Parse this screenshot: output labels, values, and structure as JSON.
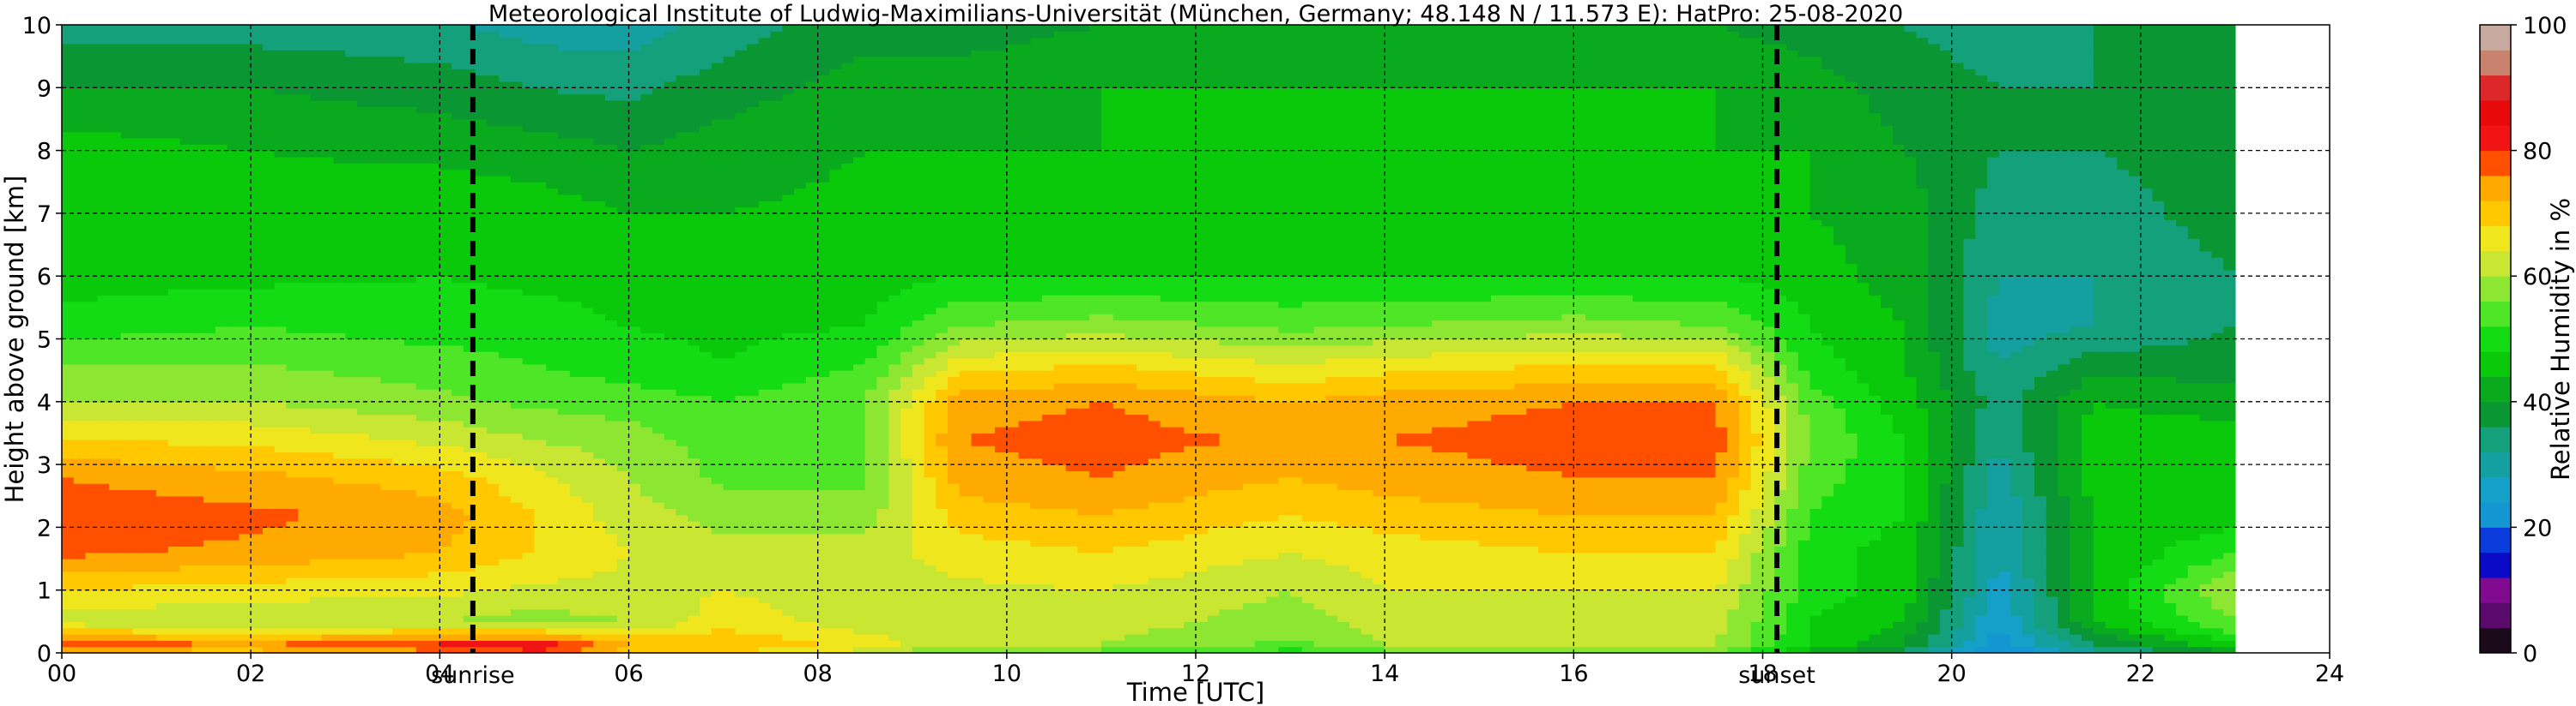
{
  "chart_data": {
    "type": "heatmap",
    "title": "Meteorological Institute of Ludwig-Maximilians-Universität (München, Germany; 48.148 N / 11.573 E):    HatPro: 25-08-2020",
    "xlabel": "Time [UTC]",
    "ylabel": "Height above ground [km]",
    "xlim": [
      0,
      24
    ],
    "ylim": [
      0,
      10
    ],
    "x_ticks": [
      0,
      2,
      4,
      6,
      8,
      10,
      12,
      14,
      16,
      18,
      20,
      22,
      24
    ],
    "x_tick_labels": [
      "00",
      "02",
      "04",
      "06",
      "08",
      "10",
      "12",
      "14",
      "16",
      "18",
      "20",
      "22",
      "24"
    ],
    "y_ticks": [
      0,
      1,
      2,
      3,
      4,
      5,
      6,
      7,
      8,
      9,
      10
    ],
    "y_tick_labels": [
      "0",
      "1",
      "2",
      "3",
      "4",
      "5",
      "6",
      "7",
      "8",
      "9",
      "10"
    ],
    "grid": true,
    "data_end_time": 23.0,
    "markers": [
      {
        "label": "sunrise",
        "time": 4.35
      },
      {
        "label": "sunset",
        "time": 18.15
      }
    ],
    "colorbar": {
      "label": "Relative Humidity in %",
      "range": [
        0,
        100
      ],
      "ticks": [
        0,
        20,
        40,
        60,
        80,
        100
      ],
      "colors": [
        "#1a0a1a",
        "#5a0a6a",
        "#800a90",
        "#0a0ac8",
        "#0a3cdc",
        "#1496d2",
        "#14a0c8",
        "#14a0a0",
        "#14a07a",
        "#0a9632",
        "#0aaa1e",
        "#0ac80a",
        "#14dc14",
        "#50e628",
        "#8ce632",
        "#c8e632",
        "#f0e61e",
        "#ffc800",
        "#ffaa00",
        "#ff5000",
        "#f01414",
        "#e60a0a",
        "#dc2828",
        "#c8826e",
        "#c8aaa0"
      ]
    },
    "rh_profiles": {
      "heights_km": [
        0.0,
        0.15,
        0.5,
        1.0,
        1.6,
        2.2,
        2.8,
        3.4,
        4.0,
        4.6,
        5.2,
        6.0,
        7.0,
        8.0,
        9.0,
        10.0
      ],
      "times_utc": [
        0,
        2,
        4,
        5,
        6,
        7,
        8.5,
        9.5,
        11,
        13,
        14,
        16,
        17.5,
        18.5,
        19.5,
        20.5,
        21.5,
        23
      ],
      "values": [
        [
          70,
          78,
          62,
          68,
          77,
          79,
          76,
          68,
          60,
          56,
          50,
          46,
          48,
          46,
          40,
          34
        ],
        [
          70,
          75,
          60,
          66,
          75,
          77,
          73,
          67,
          60,
          56,
          52,
          47,
          46,
          44,
          40,
          34
        ],
        [
          75,
          80,
          60,
          65,
          72,
          74,
          70,
          63,
          57,
          54,
          50,
          48,
          47,
          43,
          38,
          33
        ],
        [
          80,
          82,
          58,
          63,
          68,
          68,
          65,
          60,
          55,
          52,
          50,
          47,
          46,
          42,
          36,
          30
        ],
        [
          70,
          72,
          60,
          63,
          64,
          62,
          60,
          58,
          54,
          50,
          48,
          46,
          44,
          40,
          35,
          30
        ],
        [
          68,
          72,
          66,
          64,
          62,
          58,
          55,
          54,
          52,
          48,
          47,
          45,
          44,
          42,
          38,
          34
        ],
        [
          62,
          66,
          62,
          62,
          62,
          58,
          55,
          56,
          56,
          52,
          48,
          46,
          45,
          44,
          42,
          38
        ],
        [
          55,
          60,
          62,
          63,
          66,
          70,
          74,
          76,
          74,
          66,
          56,
          48,
          45,
          44,
          42,
          38
        ],
        [
          54,
          60,
          62,
          64,
          68,
          72,
          76,
          78,
          76,
          68,
          58,
          48,
          44,
          44,
          44,
          40
        ],
        [
          50,
          55,
          58,
          60,
          64,
          68,
          72,
          75,
          72,
          64,
          55,
          48,
          45,
          44,
          44,
          42
        ],
        [
          54,
          60,
          62,
          64,
          66,
          70,
          74,
          76,
          74,
          66,
          56,
          48,
          44,
          44,
          44,
          42
        ],
        [
          55,
          60,
          62,
          64,
          68,
          72,
          76,
          78,
          76,
          68,
          58,
          48,
          44,
          44,
          44,
          42
        ],
        [
          56,
          60,
          62,
          64,
          68,
          72,
          76,
          78,
          76,
          68,
          56,
          48,
          44,
          44,
          44,
          40
        ],
        [
          42,
          48,
          48,
          50,
          50,
          52,
          54,
          56,
          54,
          50,
          48,
          46,
          44,
          44,
          42,
          38
        ],
        [
          34,
          40,
          44,
          46,
          46,
          48,
          48,
          48,
          46,
          44,
          44,
          42,
          42,
          40,
          38,
          36
        ],
        [
          18,
          22,
          24,
          26,
          28,
          28,
          30,
          32,
          34,
          32,
          30,
          32,
          34,
          36,
          36,
          34
        ],
        [
          30,
          36,
          44,
          44,
          44,
          44,
          46,
          46,
          44,
          38,
          32,
          32,
          34,
          36,
          36,
          36
        ],
        [
          38,
          48,
          56,
          60,
          52,
          46,
          46,
          46,
          42,
          38,
          36,
          36,
          38,
          38,
          38,
          40
        ]
      ]
    }
  }
}
